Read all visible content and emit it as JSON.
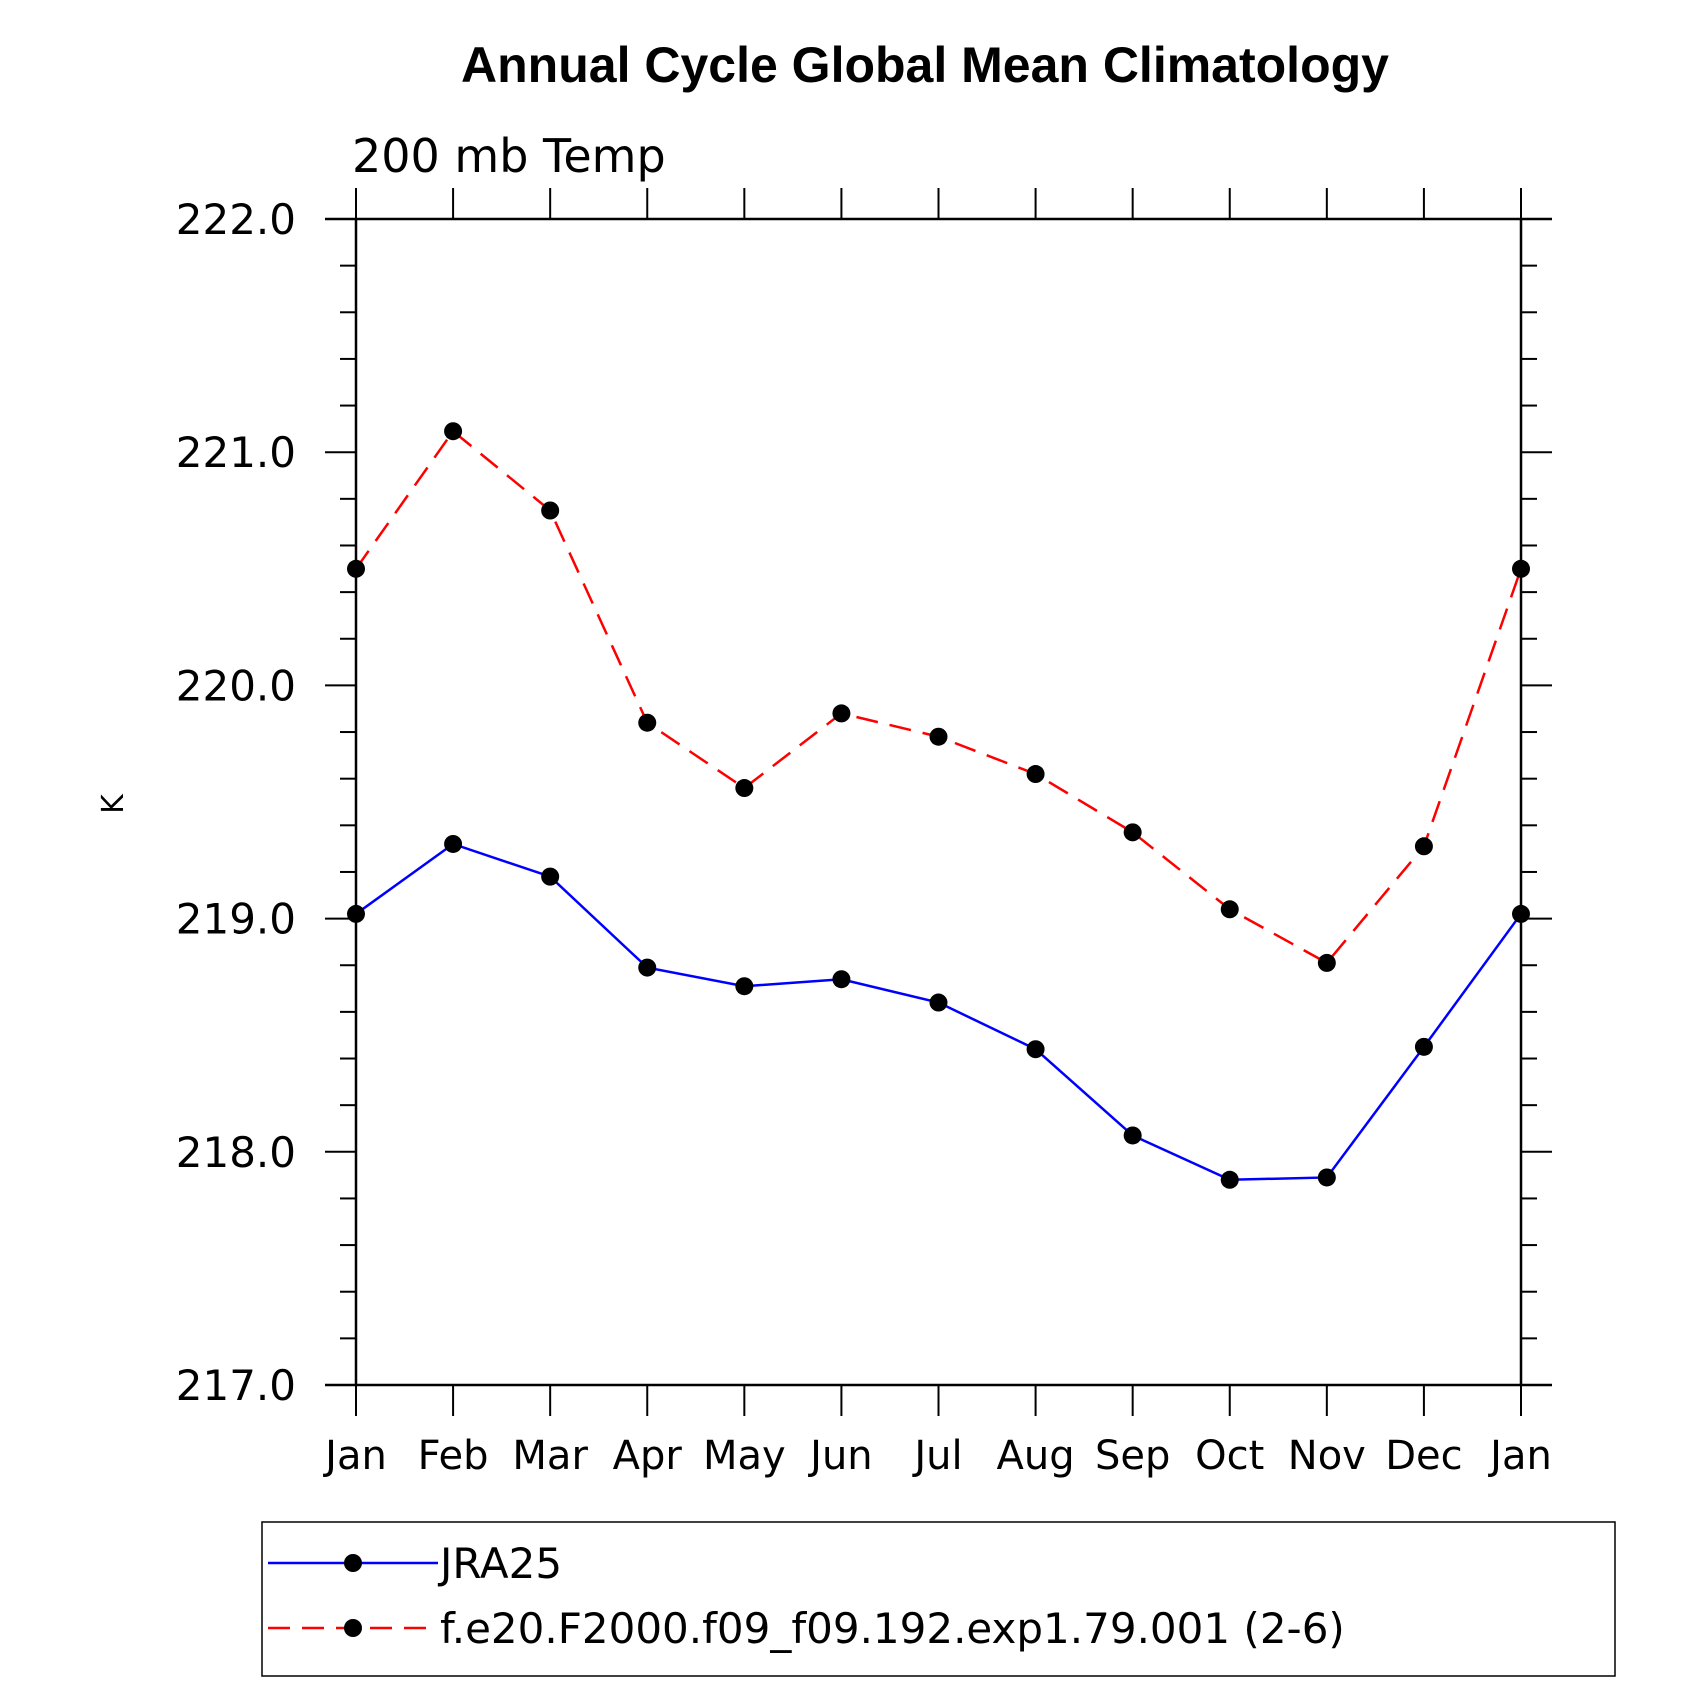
{
  "chart_data": {
    "type": "line",
    "title": "Annual Cycle Global Mean Climatology",
    "subtitle": "200 mb Temp",
    "xlabel": "",
    "ylabel": "K",
    "categories": [
      "Jan",
      "Feb",
      "Mar",
      "Apr",
      "May",
      "Jun",
      "Jul",
      "Aug",
      "Sep",
      "Oct",
      "Nov",
      "Dec",
      "Jan"
    ],
    "ylim": [
      217.0,
      222.0
    ],
    "yticks": [
      "217.0",
      "218.0",
      "219.0",
      "220.0",
      "221.0",
      "222.0"
    ],
    "grid": false,
    "legend_position": "bottom",
    "series": [
      {
        "name": "JRA25",
        "color": "#0000ff",
        "dash": "solid",
        "marker": "filled-circle",
        "values": [
          219.02,
          219.32,
          219.18,
          218.79,
          218.71,
          218.74,
          218.64,
          218.44,
          218.07,
          217.88,
          217.89,
          218.45,
          219.02
        ]
      },
      {
        "name": "f.e20.F2000.f09_f09.192.exp1.79.001 (2-6)",
        "color": "#ff0000",
        "dash": "dashed",
        "marker": "filled-circle",
        "values": [
          220.5,
          221.09,
          220.75,
          219.84,
          219.56,
          219.88,
          219.78,
          219.62,
          219.37,
          219.04,
          218.81,
          219.31,
          220.5
        ]
      }
    ]
  }
}
